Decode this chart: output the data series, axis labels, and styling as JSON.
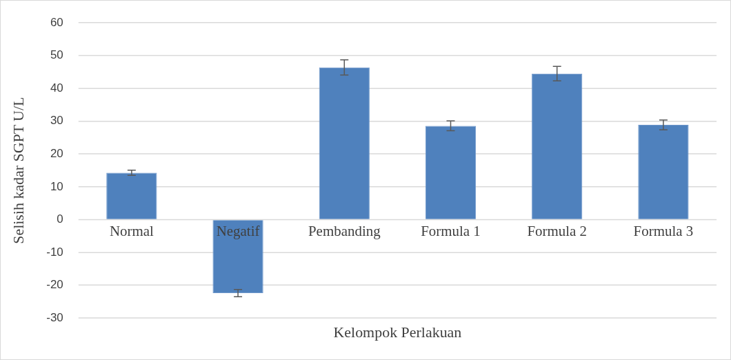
{
  "chart_data": {
    "type": "bar",
    "categories": [
      "Normal",
      "Negatif",
      "Pembanding",
      "Formula 1",
      "Formula 2",
      "Formula 3"
    ],
    "values": [
      14.3,
      -22.4,
      46.4,
      28.6,
      44.5,
      28.9
    ],
    "errors": [
      0.8,
      1.1,
      2.3,
      1.5,
      2.2,
      1.5
    ],
    "color": "#4f81bd",
    "xlabel": "Kelompok Perlakuan",
    "ylabel": "Selisih kadar SGPT U/L",
    "ylim": [
      -30,
      60
    ],
    "yticks": [
      -30,
      -20,
      -10,
      0,
      10,
      20,
      30,
      40,
      50,
      60
    ],
    "grid": "y",
    "legend": false
  }
}
